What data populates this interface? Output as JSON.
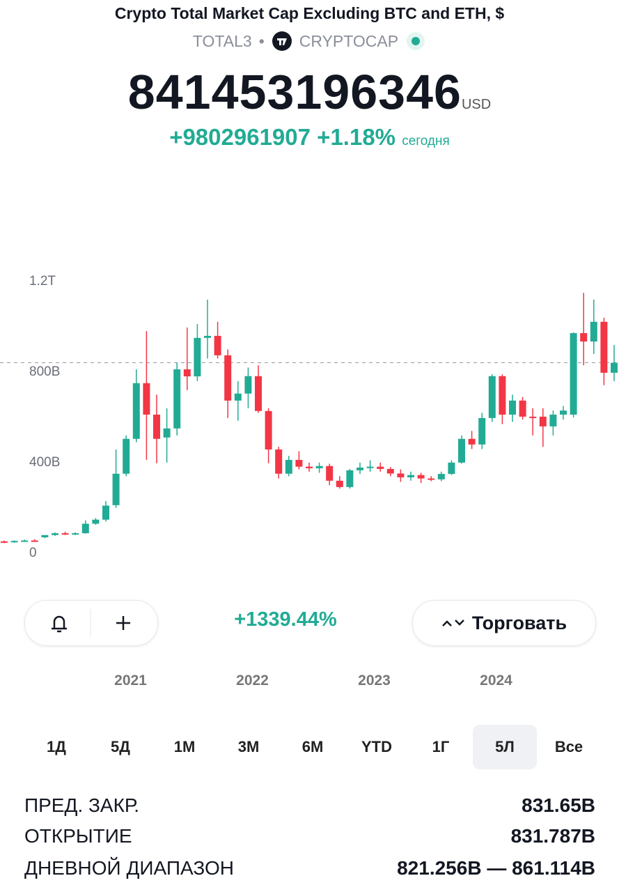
{
  "header": {
    "title": "Crypto Total Market Cap Excluding BTC and ETH, $",
    "symbol": "TOTAL3",
    "source": "CRYPTOCAP",
    "price": 841453196346,
    "currency": "USD",
    "change": "+9802961907",
    "change_pct": "+1.18%",
    "period": "сегодня"
  },
  "chart_data": {
    "type": "candlestick",
    "open": [
      52,
      48,
      54,
      56,
      70,
      80,
      88,
      84,
      88,
      130,
      148,
      212,
      351,
      505,
      751,
      612,
      511,
      551,
      812,
      781,
      951,
      960,
      874,
      674,
      705,
      782,
      628,
      458,
      351,
      412,
      382,
      375,
      385,
      320,
      292,
      366,
      378,
      382,
      372,
      352,
      335,
      345,
      330,
      326,
      350,
      400,
      505,
      480,
      597,
      782,
      612,
      674,
      603,
      603,
      560,
      612,
      612,
      972,
      935,
      1022,
      797
    ],
    "high": [
      56,
      56,
      60,
      62,
      78,
      92,
      95,
      92,
      145,
      155,
      230,
      458,
      520,
      812,
      981,
      700,
      640,
      843,
      997,
      1012,
      1120,
      1022,
      900,
      760,
      820,
      830,
      640,
      470,
      430,
      450,
      400,
      400,
      395,
      340,
      372,
      400,
      410,
      400,
      380,
      370,
      360,
      355,
      340,
      360,
      410,
      520,
      540,
      620,
      790,
      790,
      700,
      690,
      640,
      640,
      630,
      650,
      975,
      1150,
      1120,
      1040,
      920
    ],
    "low": [
      44,
      46,
      50,
      52,
      66,
      76,
      80,
      80,
      86,
      125,
      140,
      200,
      340,
      490,
      412,
      397,
      400,
      520,
      720,
      760,
      860,
      860,
      597,
      585,
      640,
      620,
      397,
      330,
      340,
      370,
      360,
      355,
      300,
      285,
      285,
      350,
      360,
      360,
      340,
      315,
      320,
      310,
      318,
      318,
      345,
      395,
      460,
      460,
      580,
      570,
      580,
      590,
      520,
      470,
      520,
      590,
      600,
      830,
      880,
      742,
      760
    ],
    "close": [
      48,
      54,
      56,
      55,
      80,
      88,
      84,
      88,
      130,
      148,
      210,
      351,
      505,
      751,
      612,
      505,
      551,
      812,
      781,
      951,
      960,
      874,
      674,
      705,
      782,
      628,
      458,
      351,
      412,
      382,
      375,
      385,
      320,
      292,
      366,
      378,
      382,
      372,
      352,
      335,
      345,
      330,
      326,
      350,
      400,
      505,
      480,
      597,
      782,
      612,
      674,
      603,
      600,
      560,
      612,
      630,
      972,
      935,
      1022,
      797,
      841
    ],
    "ylim": [
      -50,
      1280
    ],
    "yticks": [
      {
        "value": 1200,
        "label": "1.2T"
      },
      {
        "value": 800,
        "label": "800B"
      },
      {
        "value": 400,
        "label": "400B"
      },
      0
    ],
    "last_price": 841.45,
    "colors": {
      "up": "#22ab94",
      "down": "#f23645"
    }
  },
  "toolbar": {
    "performance": "+1339.44%",
    "trade": "Торговать"
  },
  "x_labels": [
    "2021",
    "2022",
    "2023",
    "2024"
  ],
  "ranges": [
    "1Д",
    "5Д",
    "1М",
    "3М",
    "6М",
    "YTD",
    "1Г",
    "5Л",
    "Все"
  ],
  "active_range": 7,
  "stats": [
    {
      "label": "ПРЕД. ЗАКР.",
      "value": "831.65B"
    },
    {
      "label": "ОТКРЫТИЕ",
      "value": "831.787B"
    },
    {
      "label": "ДНЕВНОЙ ДИАПАЗОН",
      "value": "821.256B — 861.114B"
    }
  ]
}
